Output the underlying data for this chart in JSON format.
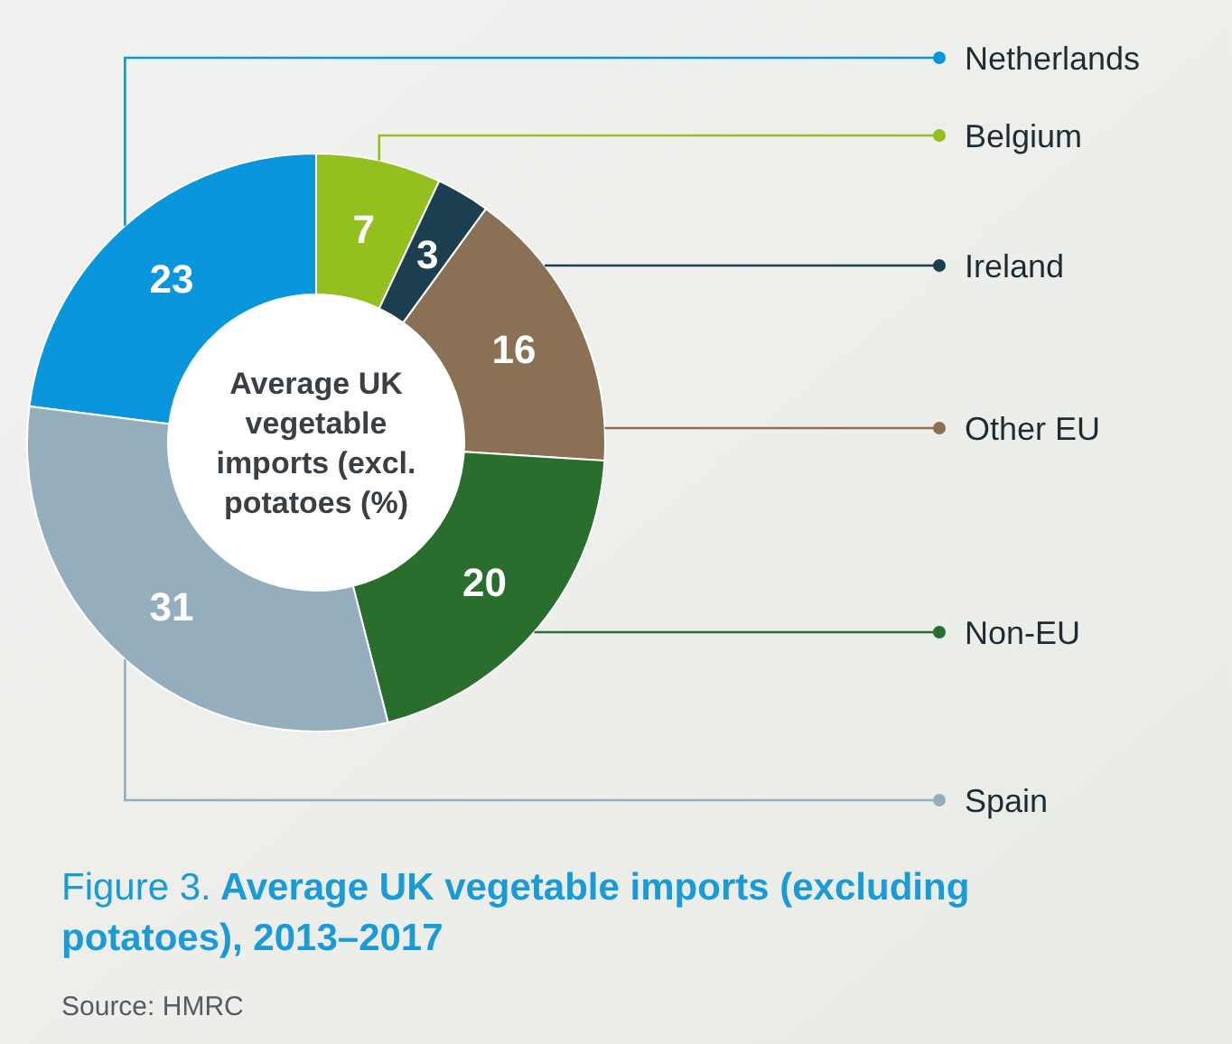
{
  "chart_data": {
    "type": "donut",
    "title": "Figure 3. Average UK vegetable imports (excluding potatoes), 2013–2017",
    "subtitle": "Average UK vegetable imports (excl. potatoes (%)",
    "categories": [
      "Netherlands",
      "Belgium",
      "Ireland",
      "Other EU",
      "Non-EU",
      "Spain"
    ],
    "values": [
      23,
      7,
      3,
      16,
      20,
      31
    ],
    "colors": [
      "#0a96dc",
      "#93c01f",
      "#1b3f4f",
      "#8a7156",
      "#2a6e2e",
      "#95aebd"
    ],
    "data_labels": true,
    "legend": "right",
    "annotations": [
      "Source: HMRC"
    ]
  }
}
